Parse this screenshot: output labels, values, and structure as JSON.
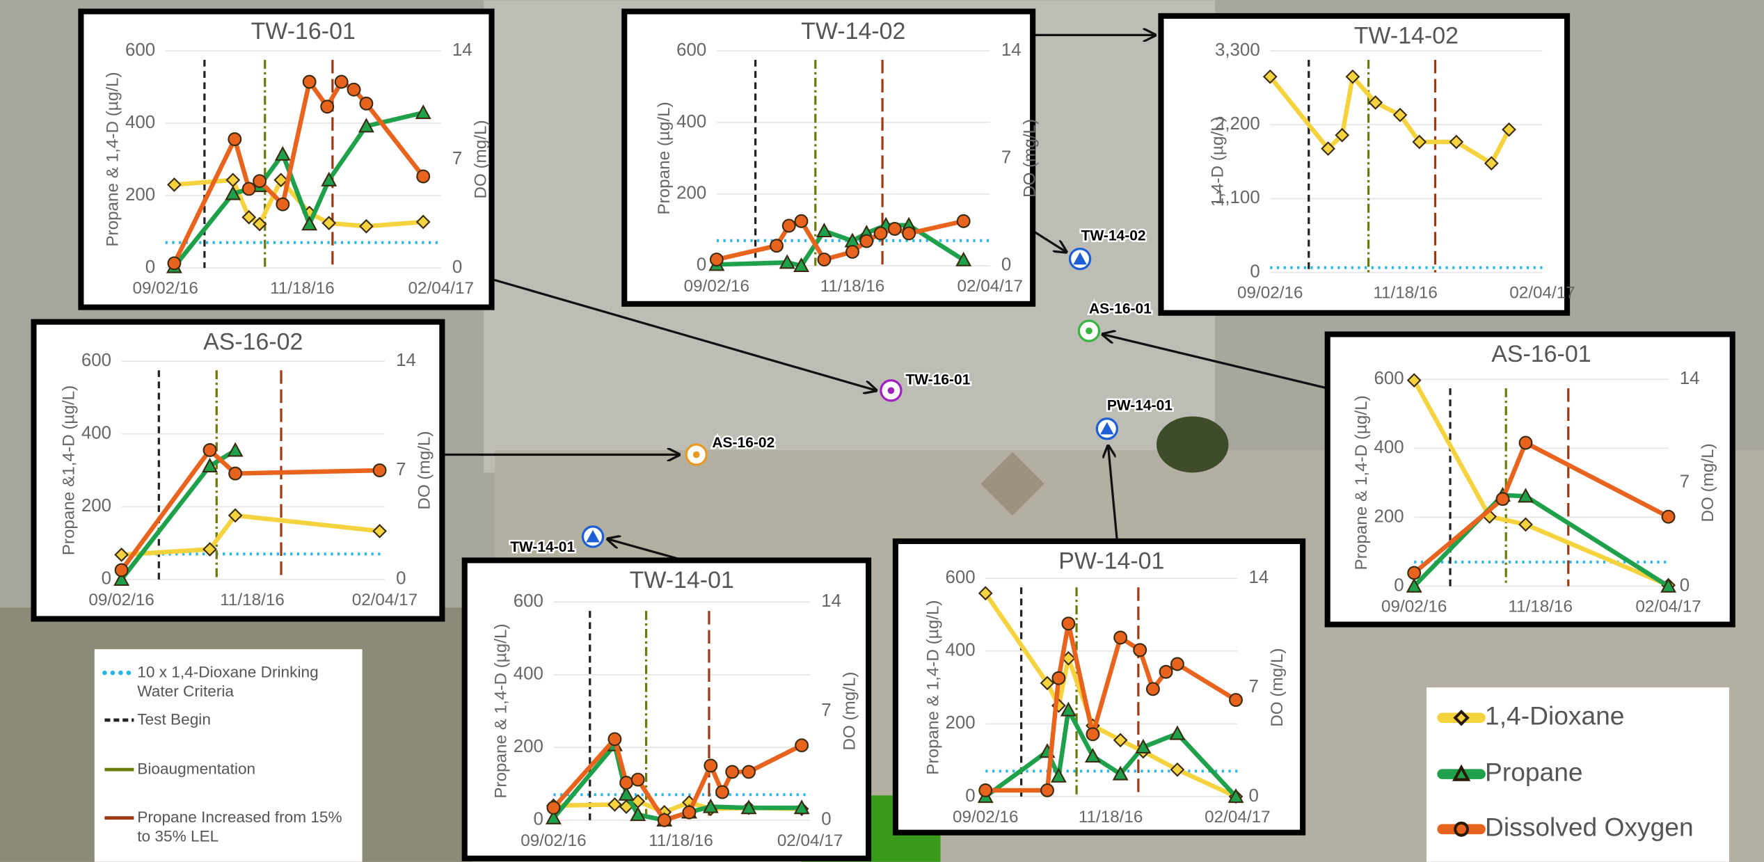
{
  "map_labels": [
    "TW-14-02",
    "AS-16-01",
    "TW-16-01",
    "PW-14-01",
    "AS-16-02",
    "TW-14-01"
  ],
  "legend": {
    "items": [
      {
        "name": "10 x 1,4-Dioxane Drinking Water Criteria",
        "color": "#29b5e8",
        "style": "dotted",
        "value": 70
      },
      {
        "name": "Test Begin",
        "color": "#222222",
        "style": "dashed",
        "x": "2016-09-24"
      },
      {
        "name": "Bioaugmentation",
        "color": "#6b7a0a",
        "style": "dashdot",
        "x": "2016-10-28"
      },
      {
        "name": "Propane Increased from 15% to 35% LEL",
        "color": "#9c3a12",
        "style": "longdash",
        "x": "2016-12-05"
      }
    ]
  },
  "chart_data": [
    {
      "type": "line",
      "title": "TW-16-01",
      "ylabel": "Propane & 1,4-D (µg/L)",
      "y2label": "DO (mg/L)",
      "grid": true,
      "xlim": [
        "2016-09-02",
        "2017-02-04"
      ],
      "xticks": [
        {
          "value": "2016-09-02",
          "label": "09/02/16"
        },
        {
          "value": "2016-11-18",
          "label": "11/18/16"
        },
        {
          "value": "2017-02-04",
          "label": "02/04/17"
        }
      ],
      "ylim": [
        0,
        600
      ],
      "yticks": [
        0,
        200,
        400,
        600
      ],
      "y2lim": [
        0,
        14
      ],
      "y2ticks": [
        0,
        7,
        14
      ],
      "series": [
        {
          "name": "1,4-Dioxane",
          "color": "#f5d33f",
          "marker": "diamond",
          "x": [
            "2016-09-07",
            "2016-10-10",
            "2016-10-19",
            "2016-10-25",
            "2016-11-06",
            "2016-11-22",
            "2016-12-03",
            "2016-12-24",
            "2017-01-25"
          ],
          "values": [
            230,
            243,
            140,
            121,
            243,
            152,
            124,
            115,
            127
          ]
        },
        {
          "name": "Propane",
          "color": "#1fa04a",
          "marker": "triangle",
          "x": [
            "2016-09-07",
            "2016-10-10",
            "2016-10-25",
            "2016-11-07",
            "2016-11-22",
            "2016-12-03",
            "2016-12-24",
            "2017-01-25"
          ],
          "values": [
            3,
            205,
            227,
            314,
            121,
            243,
            392,
            429
          ]
        },
        {
          "name": "Dissolved Oxygen",
          "color": "#e8641e",
          "marker": "circle",
          "axis": "y2",
          "x": [
            "2016-09-07",
            "2016-10-11",
            "2016-10-19",
            "2016-10-25",
            "2016-11-07",
            "2016-11-22",
            "2016-12-02",
            "2016-12-10",
            "2016-12-17",
            "2016-12-24",
            "2017-01-25"
          ],
          "values": [
            0.3,
            8.3,
            5.1,
            5.6,
            4.1,
            12,
            10.4,
            12,
            11.5,
            10.6,
            5.9
          ]
        }
      ]
    },
    {
      "type": "line",
      "title": "TW-14-02",
      "ylabel": "Propane (µg/L)",
      "y2label": "DO (mg/L)",
      "grid": true,
      "xlim": [
        "2016-09-02",
        "2017-02-04"
      ],
      "xticks": [
        {
          "value": "2016-09-02",
          "label": "09/02/16"
        },
        {
          "value": "2016-11-18",
          "label": "11/18/16"
        },
        {
          "value": "2017-02-04",
          "label": "02/04/17"
        }
      ],
      "ylim": [
        0,
        600
      ],
      "yticks": [
        0,
        200,
        400,
        600
      ],
      "y2lim": [
        0,
        14
      ],
      "y2ticks": [
        0,
        7,
        14
      ],
      "series": [
        {
          "name": "Propane",
          "color": "#1fa04a",
          "marker": "triangle",
          "x": [
            "2016-09-02",
            "2016-10-12",
            "2016-10-20",
            "2016-11-02",
            "2016-11-18",
            "2016-11-26",
            "2016-12-07",
            "2016-12-20",
            "2017-01-20"
          ],
          "values": [
            3,
            9,
            0,
            97,
            69,
            91,
            113,
            113,
            16
          ]
        },
        {
          "name": "Dissolved Oxygen",
          "color": "#e8641e",
          "marker": "circle",
          "axis": "y2",
          "x": [
            "2016-09-02",
            "2016-10-06",
            "2016-10-13",
            "2016-10-20",
            "2016-11-02",
            "2016-11-18",
            "2016-11-26",
            "2016-12-04",
            "2016-12-12",
            "2016-12-20",
            "2017-01-20"
          ],
          "values": [
            0.4,
            1.3,
            2.6,
            2.9,
            0.4,
            0.9,
            1.6,
            2.1,
            2.4,
            2.1,
            2.9
          ]
        }
      ]
    },
    {
      "type": "line",
      "title": "TW-14-02",
      "ylabel": "1,4-D (µg/L)",
      "grid": true,
      "xlim": [
        "2016-09-02",
        "2017-02-04"
      ],
      "xticks": [
        {
          "value": "2016-09-02",
          "label": "09/02/16"
        },
        {
          "value": "2016-11-18",
          "label": "11/18/16"
        },
        {
          "value": "2017-02-04",
          "label": "02/04/17"
        }
      ],
      "ylim": [
        0,
        3300
      ],
      "yticks": [
        0,
        {
          "value": 1100,
          "label": "1,100"
        },
        {
          "value": 2200,
          "label": "2,200"
        },
        {
          "value": 3300,
          "label": "3,300"
        }
      ],
      "series": [
        {
          "name": "1,4-Dioxane",
          "color": "#f5d33f",
          "marker": "diamond",
          "x": [
            "2016-09-02",
            "2016-10-05",
            "2016-10-13",
            "2016-10-19",
            "2016-11-01",
            "2016-11-15",
            "2016-11-26",
            "2016-12-17",
            "2017-01-06",
            "2017-01-16"
          ],
          "values": [
            2915,
            1843,
            2044,
            2915,
            2530,
            2345,
            1943,
            1943,
            1625,
            2127
          ]
        }
      ]
    },
    {
      "type": "line",
      "title": "AS-16-02",
      "ylabel": "Propane &1,4-D (µg/L)",
      "y2label": "DO (mg/L)",
      "grid": true,
      "xlim": [
        "2016-09-02",
        "2017-02-04"
      ],
      "xticks": [
        {
          "value": "2016-09-02",
          "label": "09/02/16"
        },
        {
          "value": "2016-11-18",
          "label": "11/18/16"
        },
        {
          "value": "2017-02-04",
          "label": "02/04/17"
        }
      ],
      "ylim": [
        0,
        600
      ],
      "yticks": [
        0,
        200,
        400,
        600
      ],
      "y2lim": [
        0,
        14
      ],
      "y2ticks": [
        0,
        7,
        14
      ],
      "series": [
        {
          "name": "1,4-Dioxane",
          "color": "#f5d33f",
          "marker": "diamond",
          "x": [
            "2016-09-02",
            "2016-10-24",
            "2016-11-08",
            "2017-02-01"
          ],
          "values": [
            68,
            83,
            176,
            133
          ]
        },
        {
          "name": "Propane",
          "color": "#1fa04a",
          "marker": "triangle",
          "x": [
            "2016-09-02",
            "2016-10-24",
            "2016-11-08"
          ],
          "values": [
            0,
            312,
            355
          ]
        },
        {
          "name": "Dissolved Oxygen",
          "color": "#e8641e",
          "marker": "circle",
          "axis": "y2",
          "x": [
            "2016-09-02",
            "2016-10-24",
            "2016-11-08",
            "2017-02-01"
          ],
          "values": [
            0.6,
            8.3,
            6.8,
            7
          ]
        }
      ]
    },
    {
      "type": "line",
      "title": "TW-14-01",
      "ylabel": "Propane & 1,4-D (µg/L)",
      "y2label": "DO (mg/L)",
      "grid": true,
      "xlim": [
        "2016-09-02",
        "2017-02-04"
      ],
      "xticks": [
        {
          "value": "2016-09-02",
          "label": "09/02/16"
        },
        {
          "value": "2016-11-18",
          "label": "11/18/16"
        },
        {
          "value": "2017-02-04",
          "label": "02/04/17"
        }
      ],
      "ylim": [
        0,
        600
      ],
      "yticks": [
        0,
        200,
        400,
        600
      ],
      "y2lim": [
        0,
        14
      ],
      "y2ticks": [
        0,
        7,
        14
      ],
      "series": [
        {
          "name": "1,4-Dioxane",
          "color": "#f5d33f",
          "marker": "diamond",
          "x": [
            "2016-09-02",
            "2016-10-09",
            "2016-10-16",
            "2016-10-23",
            "2016-11-08",
            "2016-11-23",
            "2016-12-06",
            "2016-12-29",
            "2017-01-30"
          ],
          "values": [
            40,
            43,
            37,
            52,
            22,
            49,
            31,
            34,
            31
          ]
        },
        {
          "name": "Propane",
          "color": "#1fa04a",
          "marker": "triangle",
          "x": [
            "2016-09-02",
            "2016-10-09",
            "2016-10-16",
            "2016-10-23",
            "2016-11-08",
            "2016-11-23",
            "2016-12-06",
            "2016-12-29",
            "2017-01-30"
          ],
          "values": [
            6,
            207,
            71,
            15,
            0,
            22,
            37,
            34,
            34
          ]
        },
        {
          "name": "Dissolved Oxygen",
          "color": "#e8641e",
          "marker": "circle",
          "axis": "y2",
          "x": [
            "2016-09-02",
            "2016-10-09",
            "2016-10-16",
            "2016-10-23",
            "2016-11-08",
            "2016-11-23",
            "2016-12-06",
            "2016-12-13",
            "2016-12-19",
            "2016-12-29",
            "2017-01-30"
          ],
          "values": [
            0.8,
            5.2,
            2.4,
            2.6,
            0,
            0.5,
            3.5,
            1.8,
            3.1,
            3.1,
            4.8
          ]
        }
      ]
    },
    {
      "type": "line",
      "title": "PW-14-01",
      "ylabel": "Propane & 1,4-D (µg/L)",
      "y2label": "DO (mg/L)",
      "grid": true,
      "xlim": [
        "2016-09-02",
        "2017-02-04"
      ],
      "xticks": [
        {
          "value": "2016-09-02",
          "label": "09/02/16"
        },
        {
          "value": "2016-11-18",
          "label": "11/18/16"
        },
        {
          "value": "2017-02-04",
          "label": "02/04/17"
        }
      ],
      "ylim": [
        0,
        600
      ],
      "yticks": [
        0,
        200,
        400,
        600
      ],
      "y2lim": [
        0,
        14
      ],
      "y2ticks": [
        0,
        7,
        14
      ],
      "series": [
        {
          "name": "1,4-Dioxane",
          "color": "#f5d33f",
          "marker": "diamond",
          "x": [
            "2016-09-02",
            "2016-10-10",
            "2016-10-17",
            "2016-10-23",
            "2016-11-07",
            "2016-11-24",
            "2016-12-08",
            "2016-12-29",
            "2017-02-03"
          ],
          "values": [
            559,
            312,
            250,
            380,
            195,
            155,
            124,
            74,
            0
          ]
        },
        {
          "name": "Propane",
          "color": "#1fa04a",
          "marker": "triangle",
          "x": [
            "2016-09-02",
            "2016-10-10",
            "2016-10-17",
            "2016-10-23",
            "2016-11-07",
            "2016-11-24",
            "2016-12-08",
            "2016-12-29",
            "2017-02-03"
          ],
          "values": [
            0,
            124,
            56,
            238,
            111,
            62,
            136,
            173,
            0
          ]
        },
        {
          "name": "Dissolved Oxygen",
          "color": "#e8641e",
          "marker": "circle",
          "axis": "y2",
          "x": [
            "2016-09-02",
            "2016-10-10",
            "2016-10-17",
            "2016-10-23",
            "2016-11-07",
            "2016-11-24",
            "2016-12-06",
            "2016-12-14",
            "2016-12-22",
            "2016-12-29",
            "2017-02-03"
          ],
          "values": [
            0.4,
            0.4,
            7.6,
            11.1,
            4,
            10.2,
            9.4,
            6.9,
            8,
            8.5,
            6.2
          ]
        }
      ]
    },
    {
      "type": "line",
      "title": "AS-16-01",
      "ylabel": "Propane & 1,4-D (µg/L)",
      "y2label": "DO (mg/L)",
      "grid": true,
      "xlim": [
        "2016-09-02",
        "2017-02-04"
      ],
      "xticks": [
        {
          "value": "2016-09-02",
          "label": "09/02/16"
        },
        {
          "value": "2016-11-18",
          "label": "11/18/16"
        },
        {
          "value": "2017-02-04",
          "label": "02/04/17"
        }
      ],
      "ylim": [
        0,
        600
      ],
      "yticks": [
        0,
        200,
        400,
        600
      ],
      "y2lim": [
        0,
        14
      ],
      "y2ticks": [
        0,
        7,
        14
      ],
      "series": [
        {
          "name": "1,4-Dioxane",
          "color": "#f5d33f",
          "marker": "diamond",
          "x": [
            "2016-09-02",
            "2016-10-18",
            "2016-11-09",
            "2017-02-04"
          ],
          "values": [
            597,
            202,
            179,
            3
          ]
        },
        {
          "name": "Propane",
          "color": "#1fa04a",
          "marker": "triangle",
          "x": [
            "2016-09-02",
            "2016-10-26",
            "2016-11-09",
            "2017-02-04"
          ],
          "values": [
            0,
            264,
            261,
            0
          ]
        },
        {
          "name": "Dissolved Oxygen",
          "color": "#e8641e",
          "marker": "circle",
          "axis": "y2",
          "x": [
            "2016-09-02",
            "2016-10-26",
            "2016-11-09",
            "2017-02-04"
          ],
          "values": [
            0.9,
            5.9,
            9.7,
            4.7
          ]
        }
      ]
    }
  ]
}
